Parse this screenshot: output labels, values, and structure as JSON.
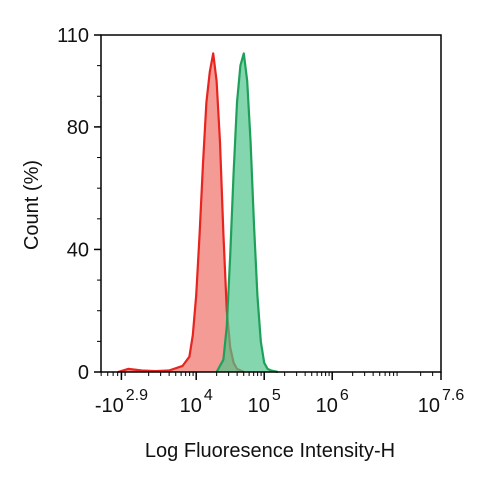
{
  "chart_data": {
    "type": "area",
    "xlabel": "Log Fluoresence Intensity-H",
    "ylabel": "Count  (%)",
    "x_scale": "log",
    "xlim_log10": [
      2.6,
      7.6
    ],
    "ylim": [
      0,
      110
    ],
    "y_ticks": [
      {
        "value": 0,
        "label": "0"
      },
      {
        "value": 40,
        "label": "40"
      },
      {
        "value": 80,
        "label": "80"
      },
      {
        "value": 110,
        "label": "110"
      }
    ],
    "x_ticks": [
      {
        "log10": 2.9,
        "base": "-10",
        "exp": "2.9"
      },
      {
        "log10": 4,
        "base": "10",
        "exp": "4"
      },
      {
        "log10": 5,
        "base": "10",
        "exp": "5"
      },
      {
        "log10": 6,
        "base": "10",
        "exp": "6"
      },
      {
        "log10": 7.6,
        "base": "10",
        "exp": "7.6"
      }
    ],
    "grid": false,
    "legend": "none",
    "series": [
      {
        "color": "#e8241f",
        "fill": "#f0706a",
        "x_log10": [
          2.85,
          3.0,
          3.2,
          3.4,
          3.6,
          3.8,
          3.9,
          3.95,
          4.0,
          4.05,
          4.1,
          4.15,
          4.2,
          4.25,
          4.3,
          4.35,
          4.4,
          4.45,
          4.5,
          4.55,
          4.6,
          4.7
        ],
        "y": [
          0,
          1,
          0.5,
          0.3,
          0.5,
          2,
          5,
          12,
          25,
          45,
          68,
          88,
          98,
          104,
          95,
          75,
          45,
          20,
          8,
          3,
          1,
          0
        ]
      },
      {
        "color": "#1ea05a",
        "fill": "#4fc58a",
        "x_log10": [
          4.3,
          4.4,
          4.45,
          4.5,
          4.55,
          4.6,
          4.65,
          4.7,
          4.75,
          4.8,
          4.85,
          4.9,
          4.95,
          5.0,
          5.05,
          5.1,
          5.2
        ],
        "y": [
          0,
          4,
          15,
          38,
          65,
          88,
          100,
          104,
          95,
          75,
          48,
          25,
          10,
          3,
          1,
          0.5,
          0
        ]
      }
    ]
  }
}
